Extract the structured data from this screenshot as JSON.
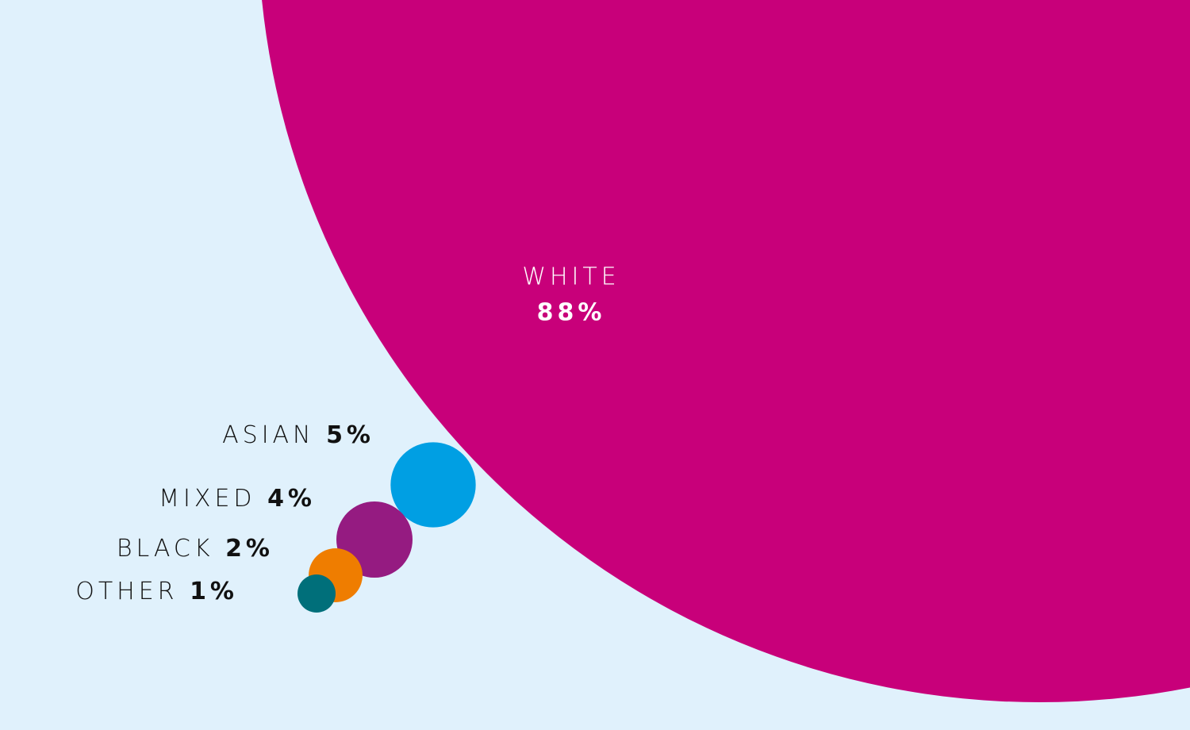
{
  "chart_data": {
    "type": "bubble",
    "categories": [
      "WHITE",
      "ASIAN",
      "MIXED",
      "BLACK",
      "OTHER"
    ],
    "values": [
      88,
      5,
      4,
      2,
      1
    ],
    "value_labels": [
      "88%",
      "5%",
      "4%",
      "2%",
      "1%"
    ],
    "colors": [
      "#c8007a",
      "#009fe3",
      "#951b81",
      "#ef7d00",
      "#006f7a"
    ]
  }
}
